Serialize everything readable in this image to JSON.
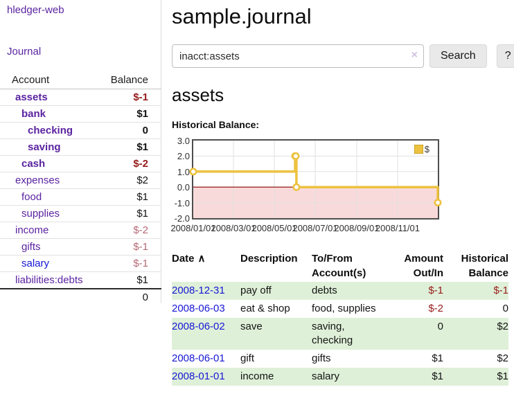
{
  "colors": {
    "link_purple": "#5a23a0",
    "link_blue": "#1616d6",
    "negative_strong": "#961a1a",
    "negative_soft": "#b56a76",
    "row_stripe_green": "#dff0d8",
    "series_gold": "#edc240"
  },
  "sidebar": {
    "brand": "hledger-web",
    "nav_journal": "Journal",
    "account_header": "Account",
    "balance_header": "Balance",
    "accounts": [
      {
        "name": "assets",
        "balance": "$-1",
        "level": 0,
        "bold": true,
        "balance_style": "neg-strong"
      },
      {
        "name": "bank",
        "balance": "$1",
        "level": 1,
        "bold": true,
        "balance_style": ""
      },
      {
        "name": "checking",
        "balance": "0",
        "level": 2,
        "bold": true,
        "balance_style": ""
      },
      {
        "name": "saving",
        "balance": "$1",
        "level": 2,
        "bold": true,
        "balance_style": ""
      },
      {
        "name": "cash",
        "balance": "$-2",
        "level": 1,
        "bold": true,
        "balance_style": "neg-strong"
      },
      {
        "name": "expenses",
        "balance": "$2",
        "level": 0,
        "bold": false,
        "balance_style": ""
      },
      {
        "name": "food",
        "balance": "$1",
        "level": 1,
        "bold": false,
        "balance_style": ""
      },
      {
        "name": "supplies",
        "balance": "$1",
        "level": 1,
        "bold": false,
        "balance_style": ""
      },
      {
        "name": "income",
        "balance": "$-2",
        "level": 0,
        "bold": false,
        "balance_style": "neg-soft"
      },
      {
        "name": "gifts",
        "balance": "$-1",
        "level": 1,
        "bold": false,
        "balance_style": "neg-soft"
      },
      {
        "name": "salary",
        "balance": "$-1",
        "level": 1,
        "bold": false,
        "balance_style": "neg-soft",
        "link_style": "blue"
      },
      {
        "name": "liabilities:debts",
        "balance": "$1",
        "level": 0,
        "bold": false,
        "balance_style": ""
      }
    ],
    "total": "0"
  },
  "main": {
    "title": "sample.journal",
    "search": {
      "value": "inacct:assets",
      "clear_icon": "×",
      "search_button": "Search",
      "help_button": "?"
    },
    "account_heading": "assets",
    "chart_section_label": "Historical Balance:"
  },
  "chart_data": {
    "type": "line",
    "step": true,
    "title": "Historical Balance",
    "series": [
      {
        "name": "$",
        "color": "#edc240",
        "points": [
          [
            "2008-01-01",
            1
          ],
          [
            "2008-06-01",
            2
          ],
          [
            "2008-06-02",
            2
          ],
          [
            "2008-06-03",
            0
          ],
          [
            "2008-12-31",
            -1
          ]
        ]
      }
    ],
    "x_range": [
      "2008-01-01",
      "2008-12-31"
    ],
    "xticks": [
      {
        "date": "2008-01-01",
        "label": "2008/01/01"
      },
      {
        "date": "2008-03-01",
        "label": "2008/03/01"
      },
      {
        "date": "2008-05-01",
        "label": "2008/05/01"
      },
      {
        "date": "2008-07-01",
        "label": "2008/07/01"
      },
      {
        "date": "2008-09-01",
        "label": "2008/09/01"
      },
      {
        "date": "2008-11-01",
        "label": "2008/11/01"
      }
    ],
    "yticks": [
      3,
      2,
      1,
      0,
      -1,
      -2
    ],
    "ylim": [
      -2,
      3
    ],
    "grid": true,
    "legend": {
      "position": "top-right",
      "label": "$"
    },
    "chart_colors": {
      "negative_region": "#f9dada",
      "zero_line": "#8b0000",
      "grid": "#e0e0e0",
      "border": "#4d4d4d"
    }
  },
  "register": {
    "sort_indicator": "∧",
    "headers": [
      {
        "label": "Date",
        "sortable": true
      },
      {
        "label": "Description"
      },
      {
        "label": "To/From Account(s)"
      },
      {
        "label": "Amount Out/In",
        "align": "right"
      },
      {
        "label": "Historical Balance",
        "align": "right"
      }
    ],
    "rows": [
      {
        "date": "2008-12-31",
        "description": "pay off",
        "accounts": "debts",
        "amount": "$-1",
        "amount_neg": true,
        "balance": "$-1",
        "balance_neg": true
      },
      {
        "date": "2008-06-03",
        "description": "eat & shop",
        "accounts": "food, supplies",
        "amount": "$-2",
        "amount_neg": true,
        "balance": "0",
        "balance_neg": false
      },
      {
        "date": "2008-06-02",
        "description": "save",
        "accounts": "saving, checking",
        "amount": "0",
        "amount_neg": false,
        "balance": "$2",
        "balance_neg": false
      },
      {
        "date": "2008-06-01",
        "description": "gift",
        "accounts": "gifts",
        "amount": "$1",
        "amount_neg": false,
        "balance": "$2",
        "balance_neg": false
      },
      {
        "date": "2008-01-01",
        "description": "income",
        "accounts": "salary",
        "amount": "$1",
        "amount_neg": false,
        "balance": "$1",
        "balance_neg": false
      }
    ]
  }
}
